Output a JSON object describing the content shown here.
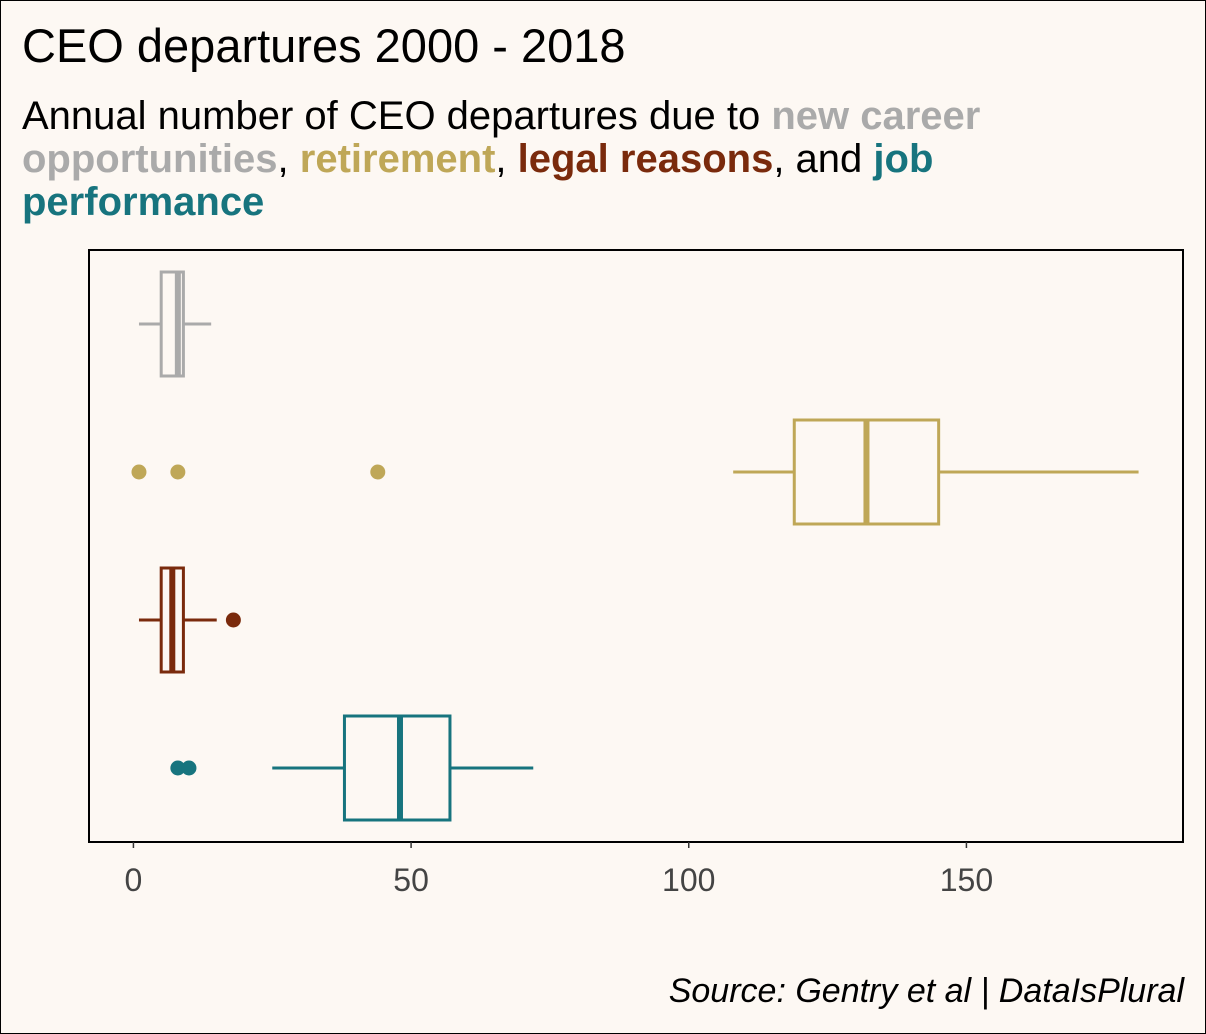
{
  "title": "CEO departures 2000 - 2018",
  "subtitle": {
    "prefix": "Annual number of CEO departures due to ",
    "cat1": "new career opportunities",
    "sep1": ", ",
    "cat2": "retirement",
    "sep2": ", ",
    "cat3": "legal reasons",
    "sep3": ", and ",
    "cat4": "job performance"
  },
  "caption": "Source: Gentry et al | DataIsPlural",
  "colors": {
    "new_career": "#aaaaaa",
    "retirement": "#bfa757",
    "legal": "#7a2a0c",
    "job_performance": "#17747e",
    "background": "#fdf8f3",
    "tick_text": "#444444"
  },
  "chart_data": {
    "type": "boxplot",
    "orientation": "horizontal",
    "title": "CEO departures 2000 - 2018",
    "xlabel": "",
    "ylabel": "",
    "xlim": [
      -8,
      189
    ],
    "xticks": [
      0,
      50,
      100,
      150
    ],
    "grid": false,
    "legend": "none",
    "series": [
      {
        "name": "new career opportunities",
        "color": "#aaaaaa",
        "whisker_low": 1,
        "q1": 5,
        "median": 8,
        "q3": 9,
        "whisker_high": 14,
        "outliers": []
      },
      {
        "name": "retirement",
        "color": "#bfa757",
        "whisker_low": 108,
        "q1": 119,
        "median": 132,
        "q3": 145,
        "whisker_high": 181,
        "outliers": [
          1,
          8,
          44
        ]
      },
      {
        "name": "legal reasons",
        "color": "#7a2a0c",
        "whisker_low": 1,
        "q1": 5,
        "median": 7,
        "q3": 9,
        "whisker_high": 15,
        "outliers": [
          18
        ]
      },
      {
        "name": "job performance",
        "color": "#17747e",
        "whisker_low": 25,
        "q1": 38,
        "median": 48,
        "q3": 57,
        "whisker_high": 72,
        "outliers": [
          8,
          10
        ]
      }
    ]
  }
}
